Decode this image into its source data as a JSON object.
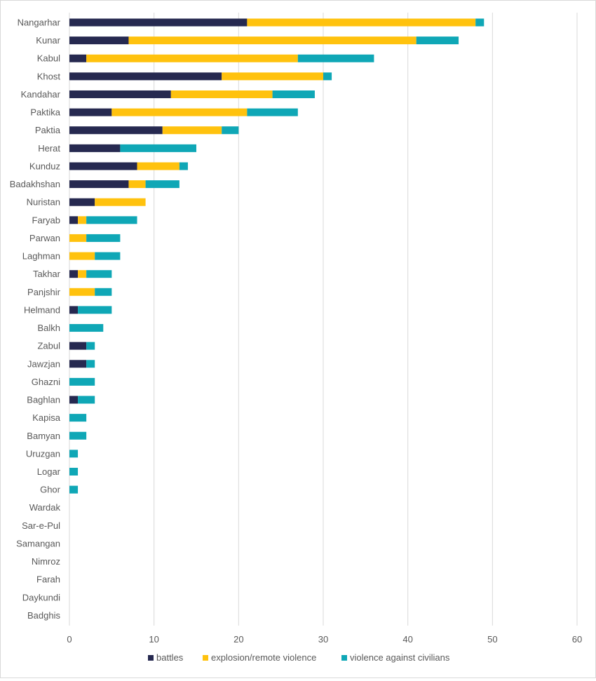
{
  "chart_data": {
    "type": "bar",
    "orientation": "horizontal",
    "stacked": true,
    "title": "",
    "xlabel": "",
    "ylabel": "",
    "xlim": [
      0,
      60
    ],
    "x_ticks": [
      0,
      10,
      20,
      30,
      40,
      50,
      60
    ],
    "grid": "vertical",
    "legend_position": "bottom",
    "categories": [
      "Nangarhar",
      "Kunar",
      "Kabul",
      "Khost",
      "Kandahar",
      "Paktika",
      "Paktia",
      "Herat",
      "Kunduz",
      "Badakhshan",
      "Nuristan",
      "Faryab",
      "Parwan",
      "Laghman",
      "Takhar",
      "Panjshir",
      "Helmand",
      "Balkh",
      "Zabul",
      "Jawzjan",
      "Ghazni",
      "Baghlan",
      "Kapisa",
      "Bamyan",
      "Uruzgan",
      "Logar",
      "Ghor",
      "Wardak",
      "Sar-e-Pul",
      "Samangan",
      "Nimroz",
      "Farah",
      "Daykundi",
      "Badghis"
    ],
    "series": [
      {
        "name": "battles",
        "color": "#262950",
        "values": [
          21,
          7,
          2,
          18,
          12,
          5,
          11,
          6,
          8,
          7,
          3,
          1,
          0,
          0,
          1,
          0,
          1,
          0,
          2,
          2,
          0,
          1,
          0,
          0,
          0,
          0,
          0,
          0,
          0,
          0,
          0,
          0,
          0,
          0
        ]
      },
      {
        "name": "explosion/remote violence",
        "color": "#FFC20E",
        "values": [
          27,
          34,
          25,
          12,
          12,
          16,
          7,
          0,
          5,
          2,
          6,
          1,
          2,
          3,
          1,
          3,
          0,
          0,
          0,
          0,
          0,
          0,
          0,
          0,
          0,
          0,
          0,
          0,
          0,
          0,
          0,
          0,
          0,
          0
        ]
      },
      {
        "name": "violence against civilians",
        "color": "#0FA7B6",
        "values": [
          1,
          5,
          9,
          1,
          5,
          6,
          2,
          9,
          1,
          4,
          0,
          6,
          4,
          3,
          3,
          2,
          4,
          4,
          1,
          1,
          3,
          2,
          2,
          2,
          1,
          1,
          1,
          0,
          0,
          0,
          0,
          0,
          0,
          0
        ]
      }
    ]
  }
}
